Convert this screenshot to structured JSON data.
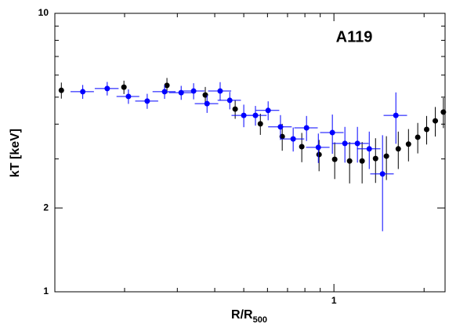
{
  "chart_data": {
    "type": "scatter",
    "annotation": "A119",
    "y_label": "kT [keV]",
    "x_label": {
      "main": "R/R",
      "sub": "500"
    },
    "x_log": true,
    "y_log": true,
    "xlim": [
      0.117,
      2.35
    ],
    "ylim": [
      1,
      10
    ],
    "xticks": [
      1
    ],
    "yticks": [
      1,
      2,
      10
    ],
    "x_minor_ticks": [
      0.2,
      0.3,
      0.4,
      0.5,
      0.6,
      0.7,
      0.8,
      0.9,
      2
    ],
    "y_minor_ticks": [
      3,
      4,
      5,
      6,
      7,
      8,
      9
    ],
    "series": [
      {
        "color": "#000000",
        "x": [
          0.123,
          0.199,
          0.277,
          0.372,
          0.468,
          0.568,
          0.672,
          0.781,
          0.892,
          1.006,
          1.128,
          1.242,
          1.377,
          1.497,
          1.64,
          1.774,
          1.905,
          2.04,
          2.18,
          2.32
        ],
        "values": [
          5.29,
          5.43,
          5.51,
          5.09,
          4.53,
          4.01,
          3.61,
          3.32,
          3.11,
          2.99,
          2.95,
          2.95,
          3.01,
          3.07,
          3.26,
          3.39,
          3.59,
          3.83,
          4.11,
          4.42
        ],
        "yerr": [
          0.35,
          0.3,
          0.35,
          0.35,
          0.35,
          0.35,
          0.4,
          0.4,
          0.4,
          0.45,
          0.5,
          0.5,
          0.55,
          0.55,
          0.5,
          0.45,
          0.45,
          0.45,
          0.5,
          0.55
        ]
      },
      {
        "color": "#0000ff",
        "x": [
          0.145,
          0.175,
          0.206,
          0.238,
          0.272,
          0.309,
          0.34,
          0.377,
          0.417,
          0.449,
          0.5,
          0.547,
          0.603,
          0.663,
          0.731,
          0.81,
          0.887,
          0.988,
          1.088,
          1.198,
          1.312,
          1.453,
          1.61
        ],
        "values": [
          5.23,
          5.37,
          5.03,
          4.84,
          5.23,
          5.19,
          5.26,
          4.74,
          5.26,
          4.87,
          4.3,
          4.3,
          4.48,
          3.91,
          3.54,
          3.88,
          3.3,
          3.73,
          3.41,
          3.41,
          3.26,
          2.65,
          4.3
        ],
        "xerr": [
          0.013,
          0.016,
          0.018,
          0.021,
          0.024,
          0.028,
          0.03,
          0.034,
          0.037,
          0.04,
          0.045,
          0.049,
          0.054,
          0.06,
          0.065,
          0.073,
          0.08,
          0.089,
          0.098,
          0.108,
          0.118,
          0.131,
          0.145
        ],
        "yerr": [
          0.3,
          0.3,
          0.3,
          0.3,
          0.3,
          0.3,
          0.35,
          0.35,
          0.4,
          0.35,
          0.4,
          0.35,
          0.35,
          0.4,
          0.35,
          0.4,
          0.4,
          0.6,
          0.5,
          0.5,
          0.5,
          1.0,
          0.9
        ]
      }
    ]
  }
}
